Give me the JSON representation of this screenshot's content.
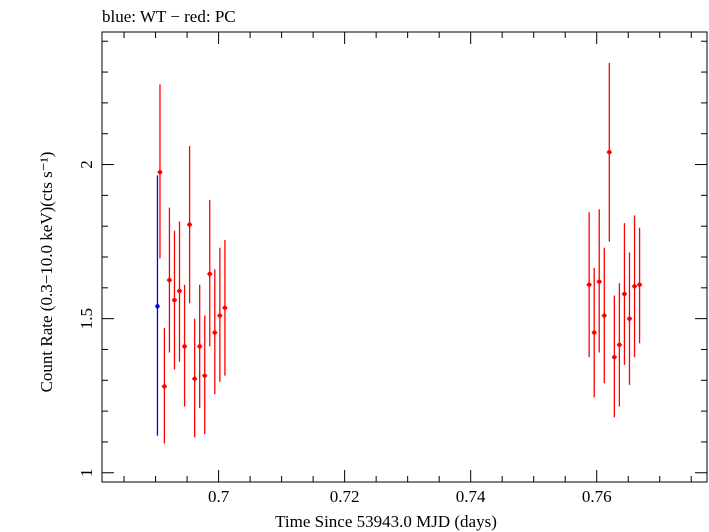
{
  "chart_data": {
    "type": "scatter",
    "title": "blue: WT − red: PC",
    "xlabel": "Time Since 53943.0 MJD (days)",
    "ylabel": "Count Rate (0.3−10.0 keV)(cts s⁻¹)",
    "xlim": [
      0.6815,
      0.7775
    ],
    "ylim": [
      0.97,
      2.43
    ],
    "xticks": [
      0.7,
      0.72,
      0.74,
      0.76
    ],
    "xtick_labels": [
      "0.7",
      "0.72",
      "0.74",
      "0.76"
    ],
    "yticks": [
      1,
      1.5,
      2
    ],
    "ytick_labels": [
      "1",
      "1.5",
      "2"
    ],
    "grid": false,
    "series": [
      {
        "name": "WT",
        "color": "#0000ff",
        "points": [
          {
            "x": 0.6903,
            "y": 1.54,
            "xerr": 0.0002,
            "ylo": 1.12,
            "yhi": 1.965
          }
        ]
      },
      {
        "name": "PC",
        "color": "#ff0000",
        "points": [
          {
            "x": 0.6907,
            "y": 1.975,
            "xerr": 0.0004,
            "ylo": 1.695,
            "yhi": 2.26
          },
          {
            "x": 0.6914,
            "y": 1.28,
            "xerr": 0.0004,
            "ylo": 1.095,
            "yhi": 1.47
          },
          {
            "x": 0.6922,
            "y": 1.625,
            "xerr": 0.0004,
            "ylo": 1.39,
            "yhi": 1.86
          },
          {
            "x": 0.693,
            "y": 1.56,
            "xerr": 0.0004,
            "ylo": 1.335,
            "yhi": 1.785
          },
          {
            "x": 0.6938,
            "y": 1.59,
            "xerr": 0.0004,
            "ylo": 1.36,
            "yhi": 1.815
          },
          {
            "x": 0.6946,
            "y": 1.41,
            "xerr": 0.0004,
            "ylo": 1.215,
            "yhi": 1.61
          },
          {
            "x": 0.6954,
            "y": 1.805,
            "xerr": 0.0004,
            "ylo": 1.55,
            "yhi": 2.06
          },
          {
            "x": 0.6962,
            "y": 1.305,
            "xerr": 0.0004,
            "ylo": 1.115,
            "yhi": 1.5
          },
          {
            "x": 0.697,
            "y": 1.41,
            "xerr": 0.0004,
            "ylo": 1.21,
            "yhi": 1.61
          },
          {
            "x": 0.6978,
            "y": 1.315,
            "xerr": 0.0004,
            "ylo": 1.125,
            "yhi": 1.51
          },
          {
            "x": 0.6986,
            "y": 1.645,
            "xerr": 0.0004,
            "ylo": 1.41,
            "yhi": 1.885
          },
          {
            "x": 0.6994,
            "y": 1.455,
            "xerr": 0.0004,
            "ylo": 1.255,
            "yhi": 1.66
          },
          {
            "x": 0.7002,
            "y": 1.51,
            "xerr": 0.0004,
            "ylo": 1.295,
            "yhi": 1.73
          },
          {
            "x": 0.701,
            "y": 1.535,
            "xerr": 0.0004,
            "ylo": 1.315,
            "yhi": 1.755
          },
          {
            "x": 0.7588,
            "y": 1.61,
            "xerr": 0.0004,
            "ylo": 1.375,
            "yhi": 1.845
          },
          {
            "x": 0.7596,
            "y": 1.455,
            "xerr": 0.0004,
            "ylo": 1.245,
            "yhi": 1.665
          },
          {
            "x": 0.7604,
            "y": 1.62,
            "xerr": 0.0004,
            "ylo": 1.39,
            "yhi": 1.855
          },
          {
            "x": 0.7612,
            "y": 1.51,
            "xerr": 0.0004,
            "ylo": 1.29,
            "yhi": 1.73
          },
          {
            "x": 0.762,
            "y": 2.04,
            "xerr": 0.0004,
            "ylo": 1.75,
            "yhi": 2.33
          },
          {
            "x": 0.7628,
            "y": 1.375,
            "xerr": 0.0004,
            "ylo": 1.18,
            "yhi": 1.575
          },
          {
            "x": 0.7636,
            "y": 1.415,
            "xerr": 0.0004,
            "ylo": 1.215,
            "yhi": 1.615
          },
          {
            "x": 0.7644,
            "y": 1.58,
            "xerr": 0.0004,
            "ylo": 1.35,
            "yhi": 1.81
          },
          {
            "x": 0.7652,
            "y": 1.5,
            "xerr": 0.0004,
            "ylo": 1.285,
            "yhi": 1.715
          },
          {
            "x": 0.766,
            "y": 1.605,
            "xerr": 0.0004,
            "ylo": 1.375,
            "yhi": 1.835
          },
          {
            "x": 0.7668,
            "y": 1.61,
            "xerr": 0.0004,
            "ylo": 1.42,
            "yhi": 1.795
          }
        ]
      }
    ]
  }
}
